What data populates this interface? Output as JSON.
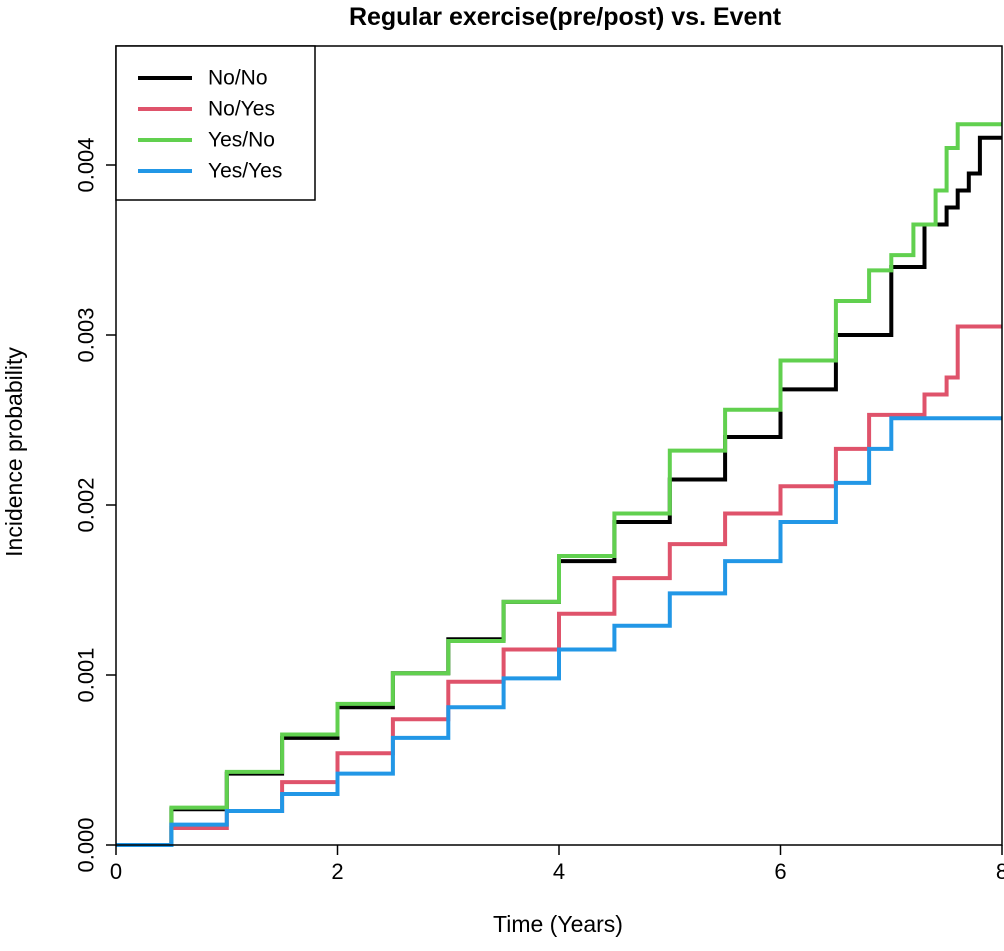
{
  "chart_data": {
    "type": "line",
    "title": "Regular exercise(pre/post) vs. Event",
    "xlabel": "Time (Years)",
    "ylabel": "Incidence probability",
    "xlim": [
      0,
      8
    ],
    "ylim": [
      0,
      0.0047
    ],
    "x_ticks": [
      0,
      2,
      4,
      6,
      8
    ],
    "x_tick_labels": [
      "0",
      "2",
      "4",
      "6",
      "8"
    ],
    "y_ticks": [
      0,
      0.001,
      0.002,
      0.003,
      0.004
    ],
    "y_tick_labels": [
      "0.000",
      "0.001",
      "0.002",
      "0.003",
      "0.004"
    ],
    "step": true,
    "grid": false,
    "legend_position": "top-left",
    "series": [
      {
        "name": "No/No",
        "color": "#000000",
        "points": [
          [
            0,
            0
          ],
          [
            0.5,
            0.00021
          ],
          [
            1.0,
            0.00042
          ],
          [
            1.5,
            0.00063
          ],
          [
            2.0,
            0.00081
          ],
          [
            2.5,
            0.00101
          ],
          [
            3.0,
            0.00121
          ],
          [
            3.5,
            0.00143
          ],
          [
            4.0,
            0.00167
          ],
          [
            4.5,
            0.0019
          ],
          [
            5.0,
            0.00215
          ],
          [
            5.5,
            0.0024
          ],
          [
            6.0,
            0.00268
          ],
          [
            6.5,
            0.003
          ],
          [
            7.0,
            0.0034
          ],
          [
            7.3,
            0.00365
          ],
          [
            7.5,
            0.00375
          ],
          [
            7.6,
            0.00385
          ],
          [
            7.7,
            0.00395
          ],
          [
            7.8,
            0.00416
          ],
          [
            8.0,
            0.00416
          ]
        ]
      },
      {
        "name": "No/Yes",
        "color": "#DF536B",
        "points": [
          [
            0,
            0
          ],
          [
            0.5,
            0.0001
          ],
          [
            1.0,
            0.0002
          ],
          [
            1.5,
            0.00037
          ],
          [
            2.0,
            0.00054
          ],
          [
            2.5,
            0.00074
          ],
          [
            3.0,
            0.00096
          ],
          [
            3.5,
            0.00115
          ],
          [
            4.0,
            0.00136
          ],
          [
            4.5,
            0.00157
          ],
          [
            5.0,
            0.00177
          ],
          [
            5.5,
            0.00195
          ],
          [
            6.0,
            0.00211
          ],
          [
            6.5,
            0.00233
          ],
          [
            6.8,
            0.00253
          ],
          [
            7.2,
            0.00253
          ],
          [
            7.3,
            0.00265
          ],
          [
            7.5,
            0.00275
          ],
          [
            7.6,
            0.00305
          ],
          [
            8.0,
            0.00305
          ]
        ]
      },
      {
        "name": "Yes/No",
        "color": "#61D04F",
        "points": [
          [
            0,
            0
          ],
          [
            0.5,
            0.00022
          ],
          [
            1.0,
            0.00043
          ],
          [
            1.5,
            0.00065
          ],
          [
            2.0,
            0.00083
          ],
          [
            2.5,
            0.00101
          ],
          [
            3.0,
            0.0012
          ],
          [
            3.5,
            0.00143
          ],
          [
            4.0,
            0.0017
          ],
          [
            4.5,
            0.00195
          ],
          [
            5.0,
            0.00232
          ],
          [
            5.5,
            0.00256
          ],
          [
            6.0,
            0.00285
          ],
          [
            6.5,
            0.0032
          ],
          [
            6.8,
            0.00338
          ],
          [
            7.0,
            0.00347
          ],
          [
            7.2,
            0.00365
          ],
          [
            7.4,
            0.00385
          ],
          [
            7.5,
            0.0041
          ],
          [
            7.6,
            0.00424
          ],
          [
            8.0,
            0.00424
          ]
        ]
      },
      {
        "name": "Yes/Yes",
        "color": "#2297E6",
        "points": [
          [
            0,
            0
          ],
          [
            0.5,
            0.00012
          ],
          [
            1.0,
            0.0002
          ],
          [
            1.5,
            0.0003
          ],
          [
            2.0,
            0.00042
          ],
          [
            2.5,
            0.00063
          ],
          [
            3.0,
            0.00081
          ],
          [
            3.5,
            0.00098
          ],
          [
            4.0,
            0.00115
          ],
          [
            4.5,
            0.00129
          ],
          [
            5.0,
            0.00148
          ],
          [
            5.5,
            0.00167
          ],
          [
            6.0,
            0.0019
          ],
          [
            6.5,
            0.00213
          ],
          [
            6.8,
            0.00233
          ],
          [
            7.0,
            0.00251
          ],
          [
            8.0,
            0.00251
          ]
        ]
      }
    ]
  }
}
